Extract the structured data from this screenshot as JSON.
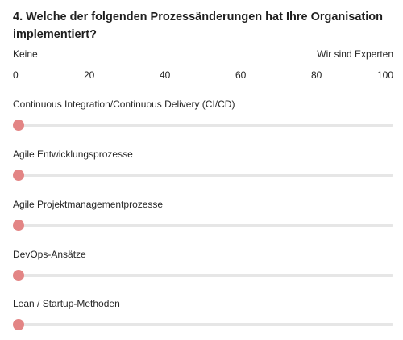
{
  "question": {
    "title": "4. Welche der folgenden Prozessänderungen hat Ihre Organisation implementiert?"
  },
  "scale": {
    "min_label": "Keine",
    "max_label": "Wir sind Experten",
    "ticks": [
      "0",
      "20",
      "40",
      "60",
      "80",
      "100"
    ]
  },
  "colors": {
    "thumb": "#e38585",
    "track": "#e6e6e6"
  },
  "items": [
    {
      "label": "Continuous Integration/Continuous Delivery (CI/CD)",
      "value": 0
    },
    {
      "label": "Agile Entwicklungsprozesse",
      "value": 0
    },
    {
      "label": "Agile Projektmanagementprozesse",
      "value": 0
    },
    {
      "label": "DevOps-Ansätze",
      "value": 0
    },
    {
      "label": "Lean / Startup-Methoden",
      "value": 0
    }
  ]
}
